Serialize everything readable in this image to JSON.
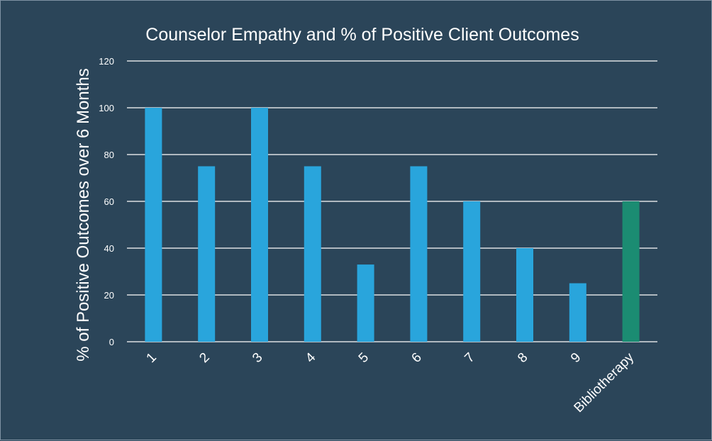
{
  "chart_data": {
    "type": "bar",
    "title": "Counselor Empathy and % of Positive Client Outcomes",
    "xlabel": "",
    "ylabel": "% of Positive Outcomes over 6 Months",
    "categories": [
      "1",
      "2",
      "3",
      "4",
      "5",
      "6",
      "7",
      "8",
      "9",
      "Bibliotherapy"
    ],
    "values": [
      100,
      75,
      100,
      75,
      33,
      75,
      60,
      40,
      25,
      60
    ],
    "ylim": [
      0,
      120
    ],
    "yticks": [
      0,
      20,
      40,
      60,
      80,
      100,
      120
    ],
    "grid": true,
    "bar_colors": [
      "#29a5dc",
      "#29a5dc",
      "#29a5dc",
      "#29a5dc",
      "#29a5dc",
      "#29a5dc",
      "#29a5dc",
      "#29a5dc",
      "#29a5dc",
      "#1b8c72"
    ]
  },
  "colors": {
    "background": "#2b4559",
    "text": "#ffffff",
    "bar_primary": "#29a5dc",
    "bar_highlight": "#1b8c72"
  }
}
